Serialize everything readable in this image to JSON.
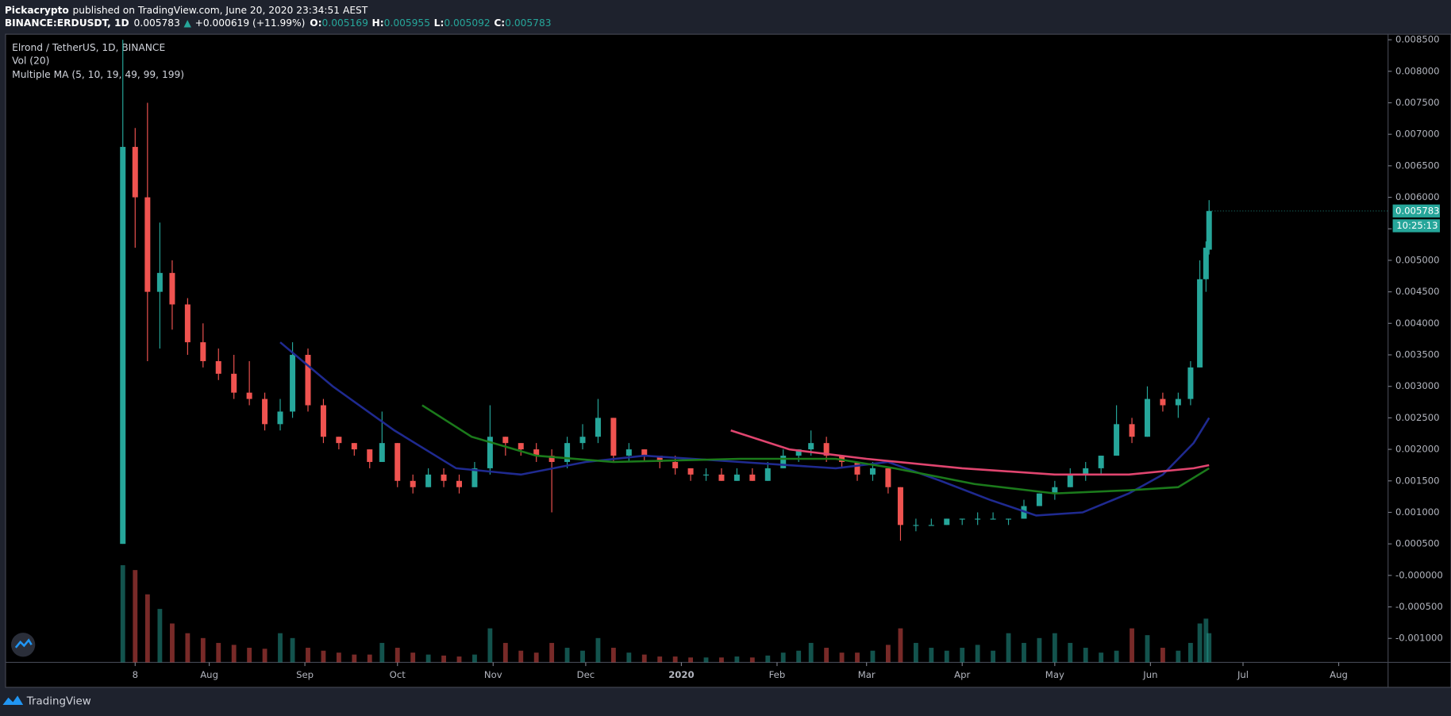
{
  "header": {
    "author": "Pickacrypto",
    "published": "published on TradingView.com, June 20, 2020 23:34:51 AEST",
    "symbol": "BINANCE:ERDUSDT, 1D",
    "last": "0.005783",
    "arrow": "▲",
    "change": "+0.000619 (+11.99%)",
    "o_key": "O:",
    "o": "0.005169",
    "h_key": "H:",
    "h": "0.005955",
    "l_key": "L:",
    "l": "0.005092",
    "c_key": "C:",
    "c": "0.005783"
  },
  "legend": [
    "Elrond / TetherUS, 1D, BINANCE",
    "Vol (20)",
    "Multiple MA (5, 10, 19, 49, 99, 199)"
  ],
  "footer": {
    "brand": "TradingView"
  },
  "chart_data": {
    "type": "candlestick",
    "x": [
      "2019-07-04",
      "2019-07-08",
      "2019-07-12",
      "2019-07-16",
      "2019-07-20",
      "2019-07-25",
      "2019-07-30",
      "2019-08-04",
      "2019-08-09",
      "2019-08-14",
      "2019-08-19",
      "2019-08-24",
      "2019-08-28",
      "2019-09-02",
      "2019-09-07",
      "2019-09-12",
      "2019-09-17",
      "2019-09-22",
      "2019-09-26",
      "2019-10-01",
      "2019-10-06",
      "2019-10-11",
      "2019-10-16",
      "2019-10-21",
      "2019-10-26",
      "2019-10-31",
      "2019-11-05",
      "2019-11-10",
      "2019-11-15",
      "2019-11-20",
      "2019-11-25",
      "2019-11-30",
      "2019-12-05",
      "2019-12-10",
      "2019-12-15",
      "2019-12-20",
      "2019-12-25",
      "2019-12-30",
      "2020-01-04",
      "2020-01-09",
      "2020-01-14",
      "2020-01-19",
      "2020-01-24",
      "2020-01-29",
      "2020-02-03",
      "2020-02-08",
      "2020-02-12",
      "2020-02-17",
      "2020-02-22",
      "2020-02-27",
      "2020-03-03",
      "2020-03-08",
      "2020-03-12",
      "2020-03-17",
      "2020-03-22",
      "2020-03-27",
      "2020-04-01",
      "2020-04-06",
      "2020-04-11",
      "2020-04-16",
      "2020-04-21",
      "2020-04-26",
      "2020-05-01",
      "2020-05-06",
      "2020-05-11",
      "2020-05-16",
      "2020-05-21",
      "2020-05-26",
      "2020-05-31",
      "2020-06-05",
      "2020-06-10",
      "2020-06-14",
      "2020-06-17",
      "2020-06-19",
      "2020-06-20"
    ],
    "open": [
      0.0005,
      0.0068,
      0.006,
      0.0045,
      0.0048,
      0.0043,
      0.0037,
      0.0034,
      0.0032,
      0.0029,
      0.0028,
      0.0024,
      0.0026,
      0.0035,
      0.0027,
      0.0022,
      0.0021,
      0.002,
      0.0018,
      0.0021,
      0.0015,
      0.0014,
      0.0016,
      0.0015,
      0.0014,
      0.0017,
      0.0022,
      0.0021,
      0.002,
      0.0019,
      0.0018,
      0.0021,
      0.0022,
      0.0025,
      0.0019,
      0.002,
      0.0019,
      0.0018,
      0.0017,
      0.0016,
      0.0016,
      0.0015,
      0.0016,
      0.0015,
      0.0017,
      0.0019,
      0.002,
      0.0021,
      0.0019,
      0.0018,
      0.0016,
      0.0017,
      0.0014,
      0.0008,
      0.0008,
      0.0008,
      0.0009,
      0.0009,
      0.0009,
      0.0009,
      0.0009,
      0.0011,
      0.0013,
      0.0014,
      0.0016,
      0.0017,
      0.0019,
      0.0024,
      0.0022,
      0.0028,
      0.0027,
      0.0028,
      0.0033,
      0.0047,
      0.005169
    ],
    "high": [
      0.0085,
      0.0071,
      0.0075,
      0.0056,
      0.005,
      0.0044,
      0.004,
      0.0036,
      0.0035,
      0.0034,
      0.0029,
      0.0028,
      0.0037,
      0.0036,
      0.0028,
      0.0022,
      0.0021,
      0.002,
      0.0026,
      0.0021,
      0.0016,
      0.0017,
      0.0017,
      0.0016,
      0.0018,
      0.0027,
      0.0022,
      0.0021,
      0.0021,
      0.002,
      0.0022,
      0.0024,
      0.0028,
      0.0025,
      0.0021,
      0.002,
      0.0019,
      0.0019,
      0.0017,
      0.0017,
      0.0017,
      0.0017,
      0.0017,
      0.0018,
      0.002,
      0.002,
      0.0023,
      0.0022,
      0.0019,
      0.0018,
      0.0018,
      0.0017,
      0.0014,
      0.0009,
      0.0009,
      0.0009,
      0.0009,
      0.001,
      0.001,
      0.0009,
      0.0012,
      0.0013,
      0.0015,
      0.0017,
      0.0018,
      0.0019,
      0.0027,
      0.0025,
      0.003,
      0.0029,
      0.0029,
      0.0034,
      0.005,
      0.0053,
      0.005955
    ],
    "low": [
      0.0005,
      0.0052,
      0.0034,
      0.0036,
      0.0039,
      0.0035,
      0.0033,
      0.0031,
      0.0028,
      0.0027,
      0.0023,
      0.0023,
      0.0025,
      0.0026,
      0.0021,
      0.002,
      0.0019,
      0.0017,
      0.0018,
      0.0014,
      0.0013,
      0.0014,
      0.0014,
      0.0013,
      0.0014,
      0.0016,
      0.0019,
      0.0019,
      0.0018,
      0.001,
      0.0017,
      0.002,
      0.0021,
      0.0018,
      0.0018,
      0.0018,
      0.0017,
      0.0016,
      0.0015,
      0.0015,
      0.0015,
      0.0015,
      0.0015,
      0.0015,
      0.0017,
      0.0018,
      0.0019,
      0.0018,
      0.0017,
      0.0015,
      0.0015,
      0.0013,
      0.00055,
      0.0007,
      0.0008,
      0.0008,
      0.0008,
      0.0008,
      0.0009,
      0.0008,
      0.0009,
      0.0011,
      0.0012,
      0.0014,
      0.0015,
      0.0016,
      0.0019,
      0.0021,
      0.0022,
      0.0026,
      0.0025,
      0.0027,
      0.0033,
      0.0045,
      0.005092
    ],
    "close": [
      0.0068,
      0.006,
      0.0045,
      0.0048,
      0.0043,
      0.0037,
      0.0034,
      0.0032,
      0.0029,
      0.0028,
      0.0024,
      0.0026,
      0.0035,
      0.0027,
      0.0022,
      0.0021,
      0.002,
      0.0018,
      0.0021,
      0.0015,
      0.0014,
      0.0016,
      0.0015,
      0.0014,
      0.0017,
      0.0022,
      0.0021,
      0.002,
      0.0019,
      0.0018,
      0.0021,
      0.0022,
      0.0025,
      0.0019,
      0.002,
      0.0019,
      0.0018,
      0.0017,
      0.0016,
      0.0016,
      0.0015,
      0.0016,
      0.0015,
      0.0017,
      0.0019,
      0.002,
      0.0021,
      0.0019,
      0.0018,
      0.0016,
      0.0017,
      0.0014,
      0.0008,
      0.0008,
      0.0008,
      0.0009,
      0.0009,
      0.0009,
      0.0009,
      0.0009,
      0.0011,
      0.0013,
      0.0014,
      0.0016,
      0.0017,
      0.0019,
      0.0024,
      0.0022,
      0.0028,
      0.0027,
      0.0028,
      0.0033,
      0.0047,
      0.0052,
      0.005783
    ],
    "volume": [
      100,
      95,
      70,
      55,
      40,
      30,
      25,
      20,
      18,
      15,
      14,
      30,
      25,
      15,
      12,
      10,
      8,
      8,
      20,
      15,
      10,
      8,
      7,
      6,
      8,
      35,
      20,
      12,
      10,
      20,
      15,
      12,
      25,
      15,
      10,
      8,
      6,
      6,
      5,
      5,
      5,
      6,
      5,
      7,
      10,
      12,
      20,
      15,
      10,
      10,
      12,
      18,
      35,
      20,
      15,
      12,
      15,
      18,
      12,
      30,
      20,
      25,
      30,
      20,
      15,
      10,
      12,
      35,
      28,
      15,
      12,
      20,
      40,
      45,
      30
    ],
    "vlim": [
      0,
      100
    ],
    "up_color": "#26a69a",
    "down_color": "#ef5350",
    "moving_averages": [
      {
        "color": "#1f2a90",
        "x": [
          "2019-08-24",
          "2019-09-10",
          "2019-09-30",
          "2019-10-20",
          "2019-11-10",
          "2019-12-01",
          "2019-12-20",
          "2020-01-20",
          "2020-02-20",
          "2020-03-08",
          "2020-03-25",
          "2020-04-10",
          "2020-04-25",
          "2020-05-10",
          "2020-05-25",
          "2020-06-05",
          "2020-06-15",
          "2020-06-20"
        ],
        "values": [
          0.0037,
          0.003,
          0.0023,
          0.0017,
          0.0016,
          0.0018,
          0.0019,
          0.0018,
          0.0017,
          0.0018,
          0.0015,
          0.0012,
          0.00095,
          0.001,
          0.0013,
          0.0016,
          0.0021,
          0.0025
        ]
      },
      {
        "color": "#1b7a1b",
        "x": [
          "2019-10-09",
          "2019-10-25",
          "2019-11-15",
          "2019-12-10",
          "2020-01-20",
          "2020-02-20",
          "2020-03-10",
          "2020-04-05",
          "2020-05-01",
          "2020-05-25",
          "2020-06-10",
          "2020-06-20"
        ],
        "values": [
          0.0027,
          0.0022,
          0.0019,
          0.0018,
          0.00185,
          0.00185,
          0.0017,
          0.00145,
          0.0013,
          0.00135,
          0.0014,
          0.0017
        ]
      },
      {
        "color": "#e0456f",
        "x": [
          "2020-01-17",
          "2020-02-05",
          "2020-03-01",
          "2020-04-01",
          "2020-05-01",
          "2020-05-25",
          "2020-06-15",
          "2020-06-20"
        ],
        "values": [
          0.0023,
          0.002,
          0.00185,
          0.0017,
          0.0016,
          0.0016,
          0.0017,
          0.00175
        ]
      }
    ],
    "price_badge": "0.005783",
    "countdown": "10:25:13",
    "xlim": [
      "2019-05-27",
      "2020-08-17"
    ],
    "xticks": [
      {
        "value": "2019-07-08",
        "label": "8"
      },
      {
        "value": "2019-08-01",
        "label": "Aug"
      },
      {
        "value": "2019-09-01",
        "label": "Sep"
      },
      {
        "value": "2019-10-01",
        "label": "Oct"
      },
      {
        "value": "2019-11-01",
        "label": "Nov"
      },
      {
        "value": "2019-12-01",
        "label": "Dec"
      },
      {
        "value": "2020-01-01",
        "label": "2020"
      },
      {
        "value": "2020-02-01",
        "label": "Feb"
      },
      {
        "value": "2020-03-01",
        "label": "Mar"
      },
      {
        "value": "2020-04-01",
        "label": "Apr"
      },
      {
        "value": "2020-05-01",
        "label": "May"
      },
      {
        "value": "2020-06-01",
        "label": "Jun"
      },
      {
        "value": "2020-07-01",
        "label": "Jul"
      },
      {
        "value": "2020-08-01",
        "label": "Aug"
      }
    ],
    "ylim": [
      -0.00138,
      0.008588
    ],
    "yticks": [
      {
        "value": 0.0085,
        "label": "0.008500"
      },
      {
        "value": 0.008,
        "label": "0.008000"
      },
      {
        "value": 0.0075,
        "label": "0.007500"
      },
      {
        "value": 0.007,
        "label": "0.007000"
      },
      {
        "value": 0.0065,
        "label": "0.006500"
      },
      {
        "value": 0.006,
        "label": "0.006000"
      },
      {
        "value": 0.0055,
        "label": "0.005500"
      },
      {
        "value": 0.005,
        "label": "0.005000"
      },
      {
        "value": 0.0045,
        "label": "0.004500"
      },
      {
        "value": 0.004,
        "label": "0.004000"
      },
      {
        "value": 0.0035,
        "label": "0.003500"
      },
      {
        "value": 0.003,
        "label": "0.003000"
      },
      {
        "value": 0.0025,
        "label": "0.002500"
      },
      {
        "value": 0.002,
        "label": "0.002000"
      },
      {
        "value": 0.0015,
        "label": "0.001500"
      },
      {
        "value": 0.001,
        "label": "0.001000"
      },
      {
        "value": 0.0005,
        "label": "0.000500"
      },
      {
        "value": 0,
        "label": "-0.000000"
      },
      {
        "value": -0.0005,
        "label": "-0.000500"
      },
      {
        "value": -0.001,
        "label": "-0.001000"
      }
    ],
    "grid": false
  }
}
